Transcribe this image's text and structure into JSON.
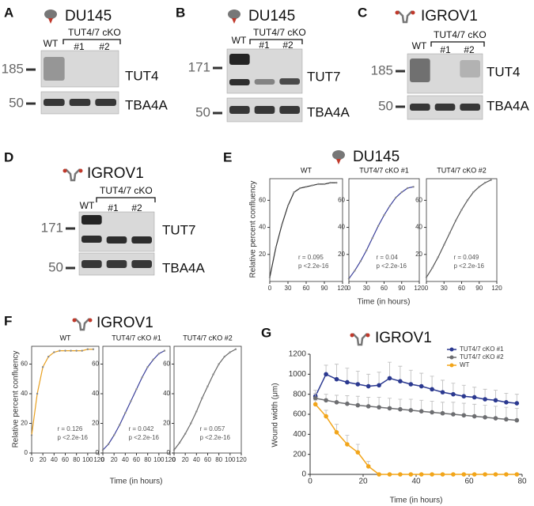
{
  "blots": [
    {
      "panel": "A",
      "cell_line": "DU145",
      "group": "TUT4/7 cKO",
      "lanes": [
        "WT",
        "#1",
        "#2"
      ],
      "rows": [
        {
          "marker": 185,
          "protein": "TUT4"
        },
        {
          "marker": 50,
          "protein": "TBA4A"
        }
      ]
    },
    {
      "panel": "B",
      "cell_line": "DU145",
      "group": "TUT4/7 cKO",
      "lanes": [
        "WT",
        "#1",
        "#2"
      ],
      "rows": [
        {
          "marker": 171,
          "protein": "TUT7"
        },
        {
          "marker": 50,
          "protein": "TBA4A"
        }
      ]
    },
    {
      "panel": "C",
      "cell_line": "IGROV1",
      "group": "TUT4/7 cKO",
      "lanes": [
        "WT",
        "#1",
        "#2"
      ],
      "rows": [
        {
          "marker": 185,
          "protein": "TUT4"
        },
        {
          "marker": 50,
          "protein": "TBA4A"
        }
      ]
    },
    {
      "panel": "D",
      "cell_line": "IGROV1",
      "group": "TUT4/7 cKO",
      "lanes": [
        "WT",
        "#1",
        "#2"
      ],
      "rows": [
        {
          "marker": 171,
          "protein": "TUT7"
        },
        {
          "marker": 50,
          "protein": "TBA4A"
        }
      ]
    }
  ],
  "chart_data": [
    {
      "type": "line",
      "panel": "E",
      "panel_title": "DU145",
      "title": "WT",
      "ylabel": "Relative percent confluency",
      "x": [
        0,
        10,
        20,
        30,
        40,
        50,
        60,
        70,
        80,
        90,
        100,
        110
      ],
      "values": [
        3,
        25,
        42,
        56,
        66,
        69,
        70,
        71,
        72,
        72,
        73,
        73
      ],
      "color": "#333333",
      "xlim": [
        0,
        120
      ],
      "xticks": [
        0,
        30,
        60,
        90,
        120
      ],
      "ylim": [
        0,
        76
      ],
      "yticks": [
        20,
        40,
        60
      ],
      "annotations": [
        "r = 0.095",
        "p <2.2e-16"
      ]
    },
    {
      "type": "line",
      "title": "TUT4/7 cKO #1",
      "xlabel": "Time (in hours)",
      "x": [
        0,
        10,
        20,
        30,
        40,
        50,
        60,
        70,
        80,
        90,
        100,
        110
      ],
      "values": [
        2,
        8,
        15,
        23,
        32,
        41,
        49,
        56,
        62,
        66,
        69,
        70
      ],
      "color": "#3a3f9a",
      "xlim": [
        0,
        120
      ],
      "xticks": [
        0,
        30,
        60,
        90,
        120
      ],
      "ylim": [
        0,
        76
      ],
      "yticks": [
        20,
        40,
        60
      ],
      "annotations": [
        "r = 0.04",
        "p <2.2e-16"
      ]
    },
    {
      "type": "line",
      "title": "TUT4/7 cKO #2",
      "x": [
        0,
        10,
        20,
        30,
        40,
        50,
        60,
        70,
        80,
        90,
        100,
        110
      ],
      "values": [
        3,
        10,
        18,
        27,
        36,
        45,
        53,
        60,
        66,
        70,
        73,
        75
      ],
      "color": "#555555",
      "xlim": [
        0,
        120
      ],
      "xticks": [
        0,
        30,
        60,
        90,
        120
      ],
      "ylim": [
        0,
        76
      ],
      "yticks": [
        20,
        40,
        60
      ],
      "annotations": [
        "r = 0.049",
        "p <2.2e-16"
      ]
    },
    {
      "type": "line",
      "panel": "F",
      "panel_title": "IGROV1",
      "title": "WT",
      "ylabel": "Relative percent confluency",
      "x": [
        0,
        10,
        20,
        30,
        40,
        50,
        60,
        70,
        80,
        90,
        100,
        110
      ],
      "values": [
        12,
        40,
        58,
        65,
        68,
        69,
        69,
        69,
        69,
        69,
        70,
        70
      ],
      "color": "#e8a020",
      "xlim": [
        0,
        120
      ],
      "xticks": [
        0,
        20,
        40,
        60,
        80,
        100,
        120
      ],
      "ylim": [
        0,
        72
      ],
      "yticks": [
        0,
        20,
        40,
        60
      ],
      "annotations": [
        "r = 0.126",
        "p <2.2e-16"
      ]
    },
    {
      "type": "line",
      "title": "TUT4/7 cKO #1",
      "xlabel": "Time (in hours)",
      "x": [
        0,
        10,
        20,
        30,
        40,
        50,
        60,
        70,
        80,
        90,
        100,
        110
      ],
      "values": [
        2,
        6,
        12,
        19,
        27,
        35,
        43,
        51,
        58,
        63,
        67,
        69
      ],
      "color": "#3a3f9a",
      "xlim": [
        0,
        120
      ],
      "xticks": [
        0,
        20,
        40,
        60,
        80,
        100,
        120
      ],
      "ylim": [
        0,
        72
      ],
      "yticks": [
        0,
        20,
        40,
        60
      ],
      "annotations": [
        "r = 0.042",
        "p <2.2e-16"
      ]
    },
    {
      "type": "line",
      "title": "TUT4/7 cKO #2",
      "x": [
        0,
        10,
        20,
        30,
        40,
        50,
        60,
        70,
        80,
        90,
        100,
        110
      ],
      "values": [
        2,
        7,
        13,
        20,
        28,
        37,
        45,
        53,
        60,
        65,
        68,
        70
      ],
      "color": "#666666",
      "xlim": [
        0,
        120
      ],
      "xticks": [
        0,
        20,
        40,
        60,
        80,
        100,
        120
      ],
      "ylim": [
        0,
        72
      ],
      "yticks": [
        0,
        20,
        40,
        60
      ],
      "annotations": [
        "r = 0.057",
        "p <2.2e-16"
      ]
    },
    {
      "type": "line",
      "panel": "G",
      "panel_title": "IGROV1",
      "xlabel": "Time (in hours)",
      "ylabel": "Wound width (μm)",
      "x": [
        2,
        6,
        10,
        14,
        18,
        22,
        26,
        30,
        34,
        38,
        42,
        46,
        50,
        54,
        58,
        62,
        66,
        70,
        74,
        78
      ],
      "series": [
        {
          "name": "TUT4/7 cKO #1",
          "color": "#2b3990",
          "values": [
            780,
            1000,
            950,
            920,
            900,
            880,
            890,
            960,
            930,
            900,
            880,
            850,
            820,
            800,
            780,
            770,
            750,
            740,
            720,
            710
          ],
          "errors": [
            60,
            90,
            150,
            140,
            130,
            120,
            130,
            160,
            150,
            140,
            130,
            130,
            120,
            110,
            110,
            100,
            100,
            100,
            90,
            90
          ]
        },
        {
          "name": "TUT4/7 cKO #2",
          "color": "#6d6e71",
          "values": [
            760,
            740,
            720,
            705,
            690,
            680,
            670,
            660,
            650,
            640,
            630,
            620,
            610,
            600,
            590,
            580,
            570,
            560,
            550,
            540
          ],
          "errors": [
            50,
            60,
            70,
            80,
            90,
            90,
            100,
            100,
            100,
            110,
            110,
            110,
            110,
            120,
            120,
            120,
            120,
            120,
            120,
            120
          ]
        },
        {
          "name": "WT",
          "color": "#f2a51a",
          "values": [
            700,
            580,
            420,
            300,
            220,
            80,
            0,
            0,
            0,
            0,
            0,
            0,
            0,
            0,
            0,
            0,
            0,
            0,
            0,
            0
          ],
          "errors": [
            40,
            60,
            80,
            90,
            80,
            50,
            0,
            0,
            0,
            0,
            0,
            0,
            0,
            0,
            0,
            0,
            0,
            0,
            0,
            0
          ]
        }
      ],
      "xlim": [
        0,
        80
      ],
      "xticks": [
        0,
        20,
        40,
        60,
        80
      ],
      "ylim": [
        0,
        1200
      ],
      "yticks": [
        0,
        200,
        400,
        600,
        800,
        1000,
        1200
      ],
      "legend": "top-right"
    }
  ]
}
